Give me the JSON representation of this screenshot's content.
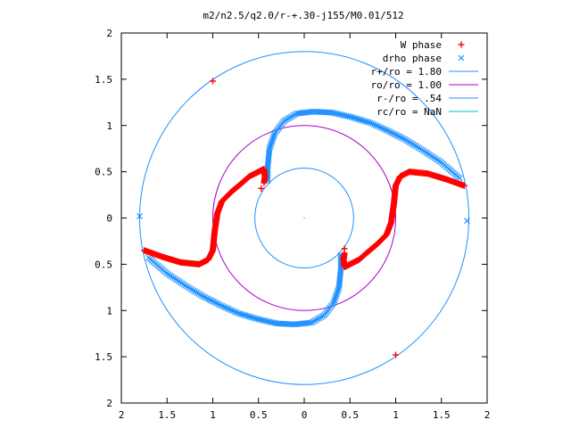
{
  "chart_data": {
    "type": "scatter",
    "title": "m2/n2.5/q2.0/r-+.30-j155/M0.01/512",
    "xlabel": "",
    "ylabel": "",
    "xlim": [
      -2,
      2
    ],
    "ylim": [
      -2,
      2
    ],
    "x_ticks": [
      -2,
      -1.5,
      -1,
      -0.5,
      0,
      0.5,
      1,
      1.5,
      2
    ],
    "y_ticks": [
      -2,
      -1.5,
      -1,
      -0.5,
      0,
      0.5,
      1,
      1.5,
      2
    ],
    "x_tick_labels": [
      "2",
      "1.5",
      "1",
      "0.5",
      "0",
      "0.5",
      "1",
      "1.5",
      "2"
    ],
    "y_tick_labels": [
      "2",
      "1.5",
      "1",
      "0.5",
      "0",
      "0.5",
      "1",
      "1.5",
      "2"
    ],
    "grid": false,
    "legend_position": "top-right",
    "colors": {
      "w_phase": "#ff0000",
      "drho_phase": "#1e90ff",
      "rplus": "#1e90ff",
      "ro": "#aa00cc",
      "rminus": "#1e90ff",
      "rc": "#00bfbf"
    },
    "legend": [
      {
        "label": "W phase",
        "marker": "plus",
        "color": "#ff0000"
      },
      {
        "label": "drho phase",
        "marker": "cross",
        "color": "#1e90ff"
      },
      {
        "label": "r+/ro = 1.80",
        "marker": "line",
        "color": "#1e90ff"
      },
      {
        "label": "ro/ro = 1.00",
        "marker": "line",
        "color": "#aa00cc"
      },
      {
        "label": "r-/ro = .54",
        "marker": "line",
        "color": "#1e90ff"
      },
      {
        "label": "rc/ro = NaN",
        "marker": "line",
        "color": "#00bfbf"
      }
    ],
    "circles": [
      {
        "name": "r+/ro = 1.80",
        "radius": 1.8
      },
      {
        "name": "ro/ro = 1.00",
        "radius": 1.0
      },
      {
        "name": "r-/ro = .54",
        "radius": 0.54
      }
    ],
    "series": [
      {
        "name": "W phase",
        "points": [
          [
            -1.75,
            -0.35
          ],
          [
            -1.55,
            -0.42
          ],
          [
            -1.35,
            -0.48
          ],
          [
            -1.15,
            -0.5
          ],
          [
            -1.05,
            -0.45
          ],
          [
            -1.0,
            -0.35
          ],
          [
            -0.98,
            -0.15
          ],
          [
            -0.95,
            0.05
          ],
          [
            -0.9,
            0.18
          ],
          [
            -0.8,
            0.28
          ],
          [
            -0.68,
            0.38
          ],
          [
            -0.6,
            0.45
          ],
          [
            -0.5,
            0.5
          ],
          [
            -0.44,
            0.53
          ],
          [
            -0.43,
            0.45
          ],
          [
            -0.44,
            0.38
          ],
          [
            1.75,
            0.35
          ],
          [
            1.55,
            0.42
          ],
          [
            1.35,
            0.48
          ],
          [
            1.15,
            0.5
          ],
          [
            1.05,
            0.45
          ],
          [
            1.0,
            0.35
          ],
          [
            0.98,
            0.15
          ],
          [
            0.95,
            -0.05
          ],
          [
            0.9,
            -0.18
          ],
          [
            0.8,
            -0.28
          ],
          [
            0.68,
            -0.38
          ],
          [
            0.6,
            -0.45
          ],
          [
            0.5,
            -0.5
          ],
          [
            0.44,
            -0.53
          ],
          [
            0.43,
            -0.45
          ],
          [
            0.44,
            -0.38
          ],
          [
            -1.0,
            1.48
          ],
          [
            1.0,
            -1.48
          ],
          [
            -0.47,
            0.32
          ],
          [
            0.44,
            -0.33
          ]
        ]
      },
      {
        "name": "drho phase",
        "points": [
          [
            -0.4,
            0.4
          ],
          [
            -0.4,
            0.55
          ],
          [
            -0.38,
            0.75
          ],
          [
            -0.32,
            0.92
          ],
          [
            -0.22,
            1.05
          ],
          [
            -0.08,
            1.13
          ],
          [
            0.1,
            1.15
          ],
          [
            0.3,
            1.14
          ],
          [
            0.52,
            1.09
          ],
          [
            0.72,
            1.03
          ],
          [
            0.9,
            0.95
          ],
          [
            1.1,
            0.85
          ],
          [
            1.3,
            0.73
          ],
          [
            1.5,
            0.6
          ],
          [
            1.7,
            0.43
          ],
          [
            0.4,
            -0.4
          ],
          [
            0.4,
            -0.55
          ],
          [
            0.38,
            -0.75
          ],
          [
            0.32,
            -0.92
          ],
          [
            0.22,
            -1.05
          ],
          [
            0.08,
            -1.13
          ],
          [
            -0.1,
            -1.15
          ],
          [
            -0.3,
            -1.14
          ],
          [
            -0.52,
            -1.09
          ],
          [
            -0.72,
            -1.03
          ],
          [
            -0.9,
            -0.95
          ],
          [
            -1.1,
            -0.85
          ],
          [
            -1.3,
            -0.73
          ],
          [
            -1.5,
            -0.6
          ],
          [
            -1.7,
            -0.43
          ],
          [
            -1.8,
            0.02
          ],
          [
            1.78,
            -0.03
          ]
        ]
      }
    ]
  }
}
